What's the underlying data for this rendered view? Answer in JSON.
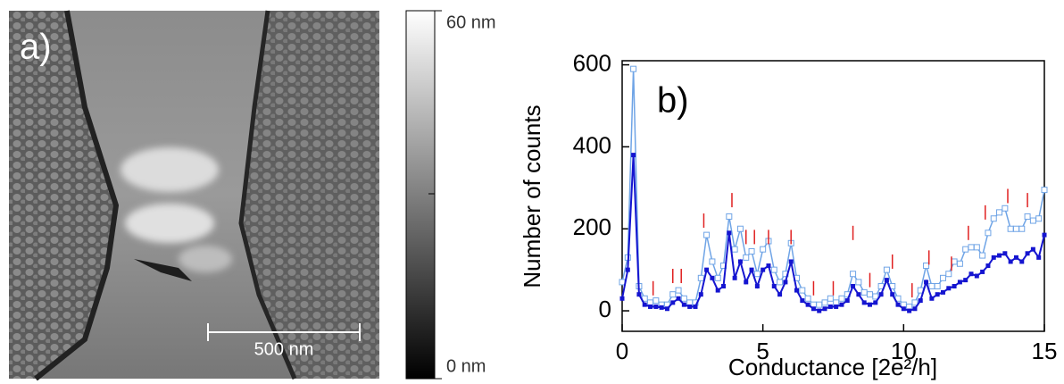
{
  "panel_a": {
    "label": "a)",
    "colorbar": {
      "max_label": "60 nm",
      "min_label": "0 nm"
    },
    "scale_bar": "500 nm"
  },
  "chart_data": {
    "type": "line",
    "panel_label": "b)",
    "x_label": "Conductance [2e²/h]",
    "y_label": "Number of counts",
    "x": [
      0,
      0.2,
      0.4,
      0.6,
      0.8,
      1,
      1.2,
      1.4,
      1.6,
      1.8,
      2,
      2.2,
      2.4,
      2.6,
      2.8,
      3,
      3.2,
      3.4,
      3.6,
      3.8,
      4,
      4.2,
      4.4,
      4.6,
      4.8,
      5,
      5.2,
      5.4,
      5.6,
      5.8,
      6,
      6.2,
      6.4,
      6.6,
      6.8,
      7,
      7.2,
      7.4,
      7.6,
      7.8,
      8,
      8.2,
      8.4,
      8.6,
      8.8,
      9,
      9.2,
      9.4,
      9.6,
      9.8,
      10,
      10.2,
      10.4,
      10.6,
      10.8,
      11,
      11.2,
      11.4,
      11.6,
      11.8,
      12,
      12.2,
      12.4,
      12.6,
      12.8,
      13,
      13.2,
      13.4,
      13.6,
      13.8,
      14,
      14.2,
      14.4,
      14.6,
      14.8,
      15
    ],
    "series": [
      {
        "color": "#6fa4e6",
        "marker": "open-square",
        "values": [
          70,
          130,
          590,
          60,
          30,
          20,
          25,
          15,
          15,
          40,
          50,
          30,
          20,
          20,
          80,
          185,
          120,
          80,
          110,
          230,
          150,
          200,
          130,
          145,
          90,
          150,
          170,
          100,
          70,
          90,
          165,
          80,
          50,
          30,
          15,
          15,
          20,
          30,
          20,
          30,
          40,
          90,
          70,
          45,
          40,
          35,
          60,
          100,
          60,
          30,
          15,
          10,
          20,
          50,
          110,
          60,
          60,
          80,
          90,
          120,
          115,
          150,
          155,
          155,
          135,
          190,
          225,
          240,
          250,
          200,
          200,
          200,
          230,
          220,
          225,
          295
        ]
      },
      {
        "color": "#1515d0",
        "marker": "filled-square",
        "values": [
          30,
          100,
          380,
          40,
          15,
          10,
          10,
          8,
          5,
          20,
          30,
          15,
          10,
          10,
          40,
          100,
          80,
          50,
          60,
          190,
          80,
          120,
          70,
          100,
          60,
          100,
          110,
          60,
          40,
          70,
          120,
          50,
          25,
          15,
          5,
          0,
          5,
          10,
          10,
          15,
          25,
          60,
          40,
          20,
          15,
          20,
          40,
          75,
          40,
          15,
          5,
          0,
          5,
          25,
          70,
          30,
          40,
          45,
          55,
          60,
          70,
          75,
          90,
          85,
          95,
          110,
          130,
          135,
          140,
          120,
          130,
          120,
          140,
          150,
          130,
          185
        ]
      }
    ],
    "peak_marks": {
      "color": "#e02020",
      "x": [
        1.1,
        1.8,
        2.1,
        2.9,
        3.9,
        4.4,
        4.7,
        5.2,
        6.0,
        6.8,
        7.5,
        8.2,
        8.8,
        9.6,
        10.3,
        10.9,
        11.7,
        12.3,
        12.9,
        13.7,
        14.4
      ],
      "y": [
        55,
        85,
        85,
        220,
        270,
        180,
        180,
        180,
        180,
        55,
        55,
        190,
        75,
        120,
        50,
        130,
        115,
        190,
        240,
        280,
        270
      ]
    },
    "xlim": [
      0,
      15
    ],
    "xticks": [
      0,
      5,
      10,
      15
    ],
    "ylim": [
      -50,
      610
    ],
    "yticks": [
      0,
      200,
      400,
      600
    ]
  }
}
